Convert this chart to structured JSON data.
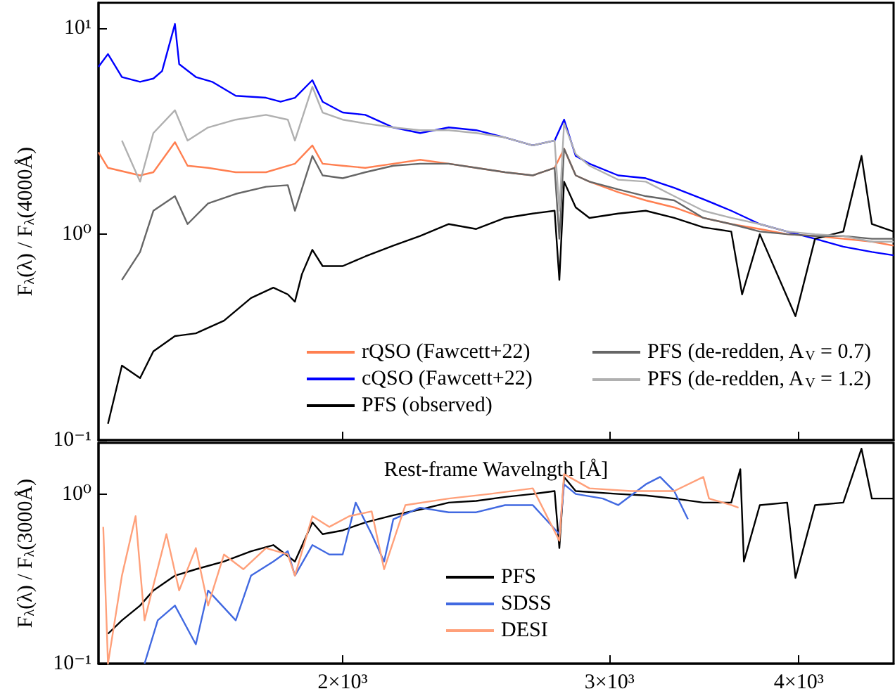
{
  "chart_data": [
    {
      "type": "line",
      "xlabel": "Rest-frame Wavelngth [Å]",
      "ylabel": "F$_{λ}$(λ) / F$_{λ}$(4000Å)",
      "log": "xy",
      "xlim": [
        1380,
        4620
      ],
      "xticks": [
        {
          "value": 2000,
          "label": null
        },
        {
          "value": 3000,
          "label": null
        },
        {
          "value": 4000,
          "label": null
        }
      ],
      "ylim": [
        0.1,
        13.3
      ],
      "yticks": [
        {
          "value": 0.1,
          "label": "10⁻¹"
        },
        {
          "value": 1,
          "label": "10⁰"
        },
        {
          "value": 10,
          "label": "10¹"
        }
      ],
      "tick_labels": "y",
      "grid": false,
      "legend": "bottom right",
      "series": [
        {
          "name": "rQSO (Fawcett+22)",
          "color": "#ff7f50",
          "x": [
            1380,
            1400,
            1470,
            1500,
            1550,
            1580,
            1630,
            1700,
            1780,
            1860,
            1910,
            1940,
            2000,
            2070,
            2160,
            2250,
            2350,
            2450,
            2560,
            2670,
            2760,
            2800,
            2850,
            2910,
            3040,
            3170,
            3310,
            3460,
            3610,
            3770,
            3930,
            4100,
            4280,
            4470,
            4620
          ],
          "values": [
            2.5,
            2.1,
            1.93,
            2.0,
            2.8,
            2.15,
            2.1,
            2.0,
            2.0,
            2.2,
            2.7,
            2.2,
            2.15,
            2.1,
            2.2,
            2.3,
            2.2,
            2.1,
            2.0,
            1.93,
            2.1,
            2.6,
            1.93,
            1.8,
            1.6,
            1.46,
            1.35,
            1.2,
            1.12,
            1.06,
            1.0,
            0.98,
            0.95,
            0.92,
            0.88
          ]
        },
        {
          "name": "cQSO (Fawcett+22)",
          "color": "#0000ff",
          "x": [
            1380,
            1400,
            1430,
            1470,
            1500,
            1520,
            1550,
            1560,
            1600,
            1640,
            1700,
            1780,
            1820,
            1860,
            1910,
            1940,
            2000,
            2070,
            2160,
            2250,
            2350,
            2450,
            2560,
            2670,
            2760,
            2800,
            2850,
            2910,
            3040,
            3170,
            3310,
            3460,
            3610,
            3770,
            3930,
            4100,
            4280,
            4470,
            4620
          ],
          "values": [
            6.5,
            7.5,
            5.8,
            5.5,
            5.7,
            6.2,
            10.5,
            6.7,
            5.8,
            5.5,
            4.7,
            4.6,
            4.4,
            4.6,
            5.6,
            4.4,
            3.9,
            3.8,
            3.3,
            3.1,
            3.3,
            3.2,
            2.95,
            2.7,
            2.85,
            3.6,
            2.4,
            2.2,
            1.93,
            1.87,
            1.68,
            1.48,
            1.3,
            1.12,
            1.03,
            0.95,
            0.87,
            0.82,
            0.79
          ]
        },
        {
          "name": "PFS (observed)",
          "color": "#000000",
          "x": [
            1400,
            1430,
            1470,
            1500,
            1550,
            1600,
            1670,
            1740,
            1800,
            1840,
            1860,
            1880,
            1910,
            1940,
            2000,
            2070,
            2160,
            2250,
            2350,
            2450,
            2560,
            2670,
            2760,
            2780,
            2800,
            2850,
            2910,
            3040,
            3170,
            3310,
            3460,
            3610,
            3670,
            3770,
            3980,
            4100,
            4280,
            4400,
            4470,
            4620
          ],
          "values": [
            0.12,
            0.23,
            0.2,
            0.27,
            0.32,
            0.33,
            0.38,
            0.49,
            0.55,
            0.51,
            0.47,
            0.64,
            0.84,
            0.7,
            0.7,
            0.78,
            0.88,
            0.98,
            1.12,
            1.06,
            1.2,
            1.26,
            1.3,
            0.6,
            1.8,
            1.35,
            1.2,
            1.26,
            1.3,
            1.2,
            1.08,
            1.03,
            0.51,
            1.0,
            0.4,
            0.95,
            1.03,
            2.4,
            1.12,
            1.03
          ]
        },
        {
          "name": "PFS (de-redden, A$_{V}$ = 0.7)",
          "color": "#666666",
          "x": [
            1430,
            1470,
            1500,
            1550,
            1580,
            1630,
            1700,
            1780,
            1840,
            1860,
            1910,
            1940,
            2000,
            2070,
            2160,
            2250,
            2350,
            2450,
            2560,
            2670,
            2760,
            2780,
            2800,
            2850,
            2910,
            3040,
            3170,
            3310,
            3460,
            3610,
            3770,
            3930,
            4100,
            4280,
            4470,
            4620
          ],
          "values": [
            0.6,
            0.82,
            1.3,
            1.53,
            1.12,
            1.41,
            1.57,
            1.7,
            1.73,
            1.3,
            2.4,
            1.93,
            1.87,
            2.0,
            2.15,
            2.2,
            2.2,
            2.1,
            2.0,
            1.93,
            2.1,
            0.95,
            2.6,
            1.93,
            1.8,
            1.65,
            1.53,
            1.46,
            1.2,
            1.12,
            1.03,
            1.0,
            0.98,
            0.98,
            0.95,
            0.95
          ]
        },
        {
          "name": "PFS (de-redden, A$_{V}$ = 1.2)",
          "color": "#b0b0b0",
          "x": [
            1430,
            1470,
            1500,
            1550,
            1580,
            1630,
            1700,
            1780,
            1840,
            1860,
            1910,
            1940,
            2000,
            2070,
            2160,
            2250,
            2350,
            2450,
            2560,
            2670,
            2760,
            2780,
            2800,
            2850,
            2910,
            3040,
            3170,
            3310,
            3460,
            3610,
            3770,
            3930,
            4100,
            4280,
            4470,
            4620
          ],
          "values": [
            2.85,
            1.8,
            3.1,
            4.0,
            2.85,
            3.3,
            3.6,
            3.8,
            3.6,
            2.85,
            5.2,
            3.9,
            3.6,
            3.45,
            3.3,
            3.2,
            3.2,
            3.1,
            2.95,
            2.7,
            2.85,
            1.3,
            3.45,
            2.45,
            2.15,
            1.84,
            1.8,
            1.53,
            1.3,
            1.2,
            1.12,
            1.03,
            1.0,
            0.98,
            0.92,
            0.92
          ]
        }
      ]
    },
    {
      "type": "line",
      "ylabel": "F$_{λ}$(λ) / F$_{λ}$(3000Å)",
      "log": "xy",
      "xlim": [
        1380,
        4620
      ],
      "xticks": [
        {
          "value": 2000,
          "label": "2×10³"
        },
        {
          "value": 3000,
          "label": "3×10³"
        },
        {
          "value": 4000,
          "label": "4×10³"
        }
      ],
      "ylim": [
        0.1,
        2.0
      ],
      "yticks": [
        {
          "value": 0.1,
          "label": "10⁻¹"
        },
        {
          "value": 1,
          "label": "10⁰"
        }
      ],
      "grid": false,
      "legend": "bottom",
      "series": [
        {
          "name": "PFS",
          "color": "#000000",
          "x": [
            1400,
            1430,
            1470,
            1500,
            1550,
            1600,
            1670,
            1740,
            1800,
            1860,
            1910,
            1940,
            2000,
            2070,
            2160,
            2250,
            2350,
            2450,
            2560,
            2670,
            2760,
            2780,
            2800,
            2850,
            3040,
            3170,
            3310,
            3460,
            3610,
            3660,
            3680,
            3770,
            3930,
            3980,
            4100,
            4280,
            4400,
            4470,
            4620
          ],
          "values": [
            0.15,
            0.18,
            0.22,
            0.27,
            0.33,
            0.36,
            0.4,
            0.46,
            0.5,
            0.4,
            0.68,
            0.58,
            0.61,
            0.68,
            0.75,
            0.81,
            0.89,
            0.91,
            0.96,
            1.0,
            1.04,
            0.48,
            1.26,
            1.04,
            1.0,
            0.98,
            0.94,
            0.89,
            0.89,
            1.4,
            0.4,
            0.86,
            0.89,
            0.32,
            0.86,
            0.89,
            1.85,
            0.94,
            0.94
          ]
        },
        {
          "name": "SDSS",
          "color": "#4169e1",
          "x": [
            1480,
            1510,
            1550,
            1600,
            1630,
            1700,
            1740,
            1800,
            1840,
            1860,
            1910,
            1960,
            2000,
            2040,
            2090,
            2130,
            2160,
            2250,
            2350,
            2450,
            2560,
            2670,
            2780,
            2800,
            2850,
            2970,
            3040,
            3170,
            3240,
            3310,
            3380
          ],
          "values": [
            0.1,
            0.18,
            0.22,
            0.13,
            0.27,
            0.18,
            0.33,
            0.4,
            0.46,
            0.33,
            0.5,
            0.44,
            0.44,
            0.89,
            0.58,
            0.4,
            0.71,
            0.83,
            0.78,
            0.78,
            0.86,
            0.86,
            0.58,
            1.14,
            1.0,
            0.94,
            0.86,
            1.14,
            1.26,
            1.04,
            0.71
          ]
        },
        {
          "name": "DESI",
          "color": "#ffa07a",
          "x": [
            1390,
            1400,
            1430,
            1460,
            1480,
            1530,
            1560,
            1600,
            1630,
            1670,
            1720,
            1780,
            1840,
            1860,
            1910,
            1960,
            2020,
            2090,
            2130,
            2200,
            2350,
            2500,
            2670,
            2780,
            2800,
            2910,
            3100,
            3310,
            3460,
            3490,
            3610,
            3650
          ],
          "values": [
            0.64,
            0.1,
            0.33,
            0.74,
            0.18,
            0.58,
            0.27,
            0.48,
            0.22,
            0.44,
            0.36,
            0.48,
            0.44,
            0.33,
            0.74,
            0.64,
            0.74,
            0.79,
            0.36,
            0.86,
            0.94,
            1.0,
            1.08,
            0.53,
            1.31,
            1.08,
            1.04,
            1.04,
            1.26,
            0.94,
            0.86,
            0.83
          ]
        }
      ]
    }
  ]
}
